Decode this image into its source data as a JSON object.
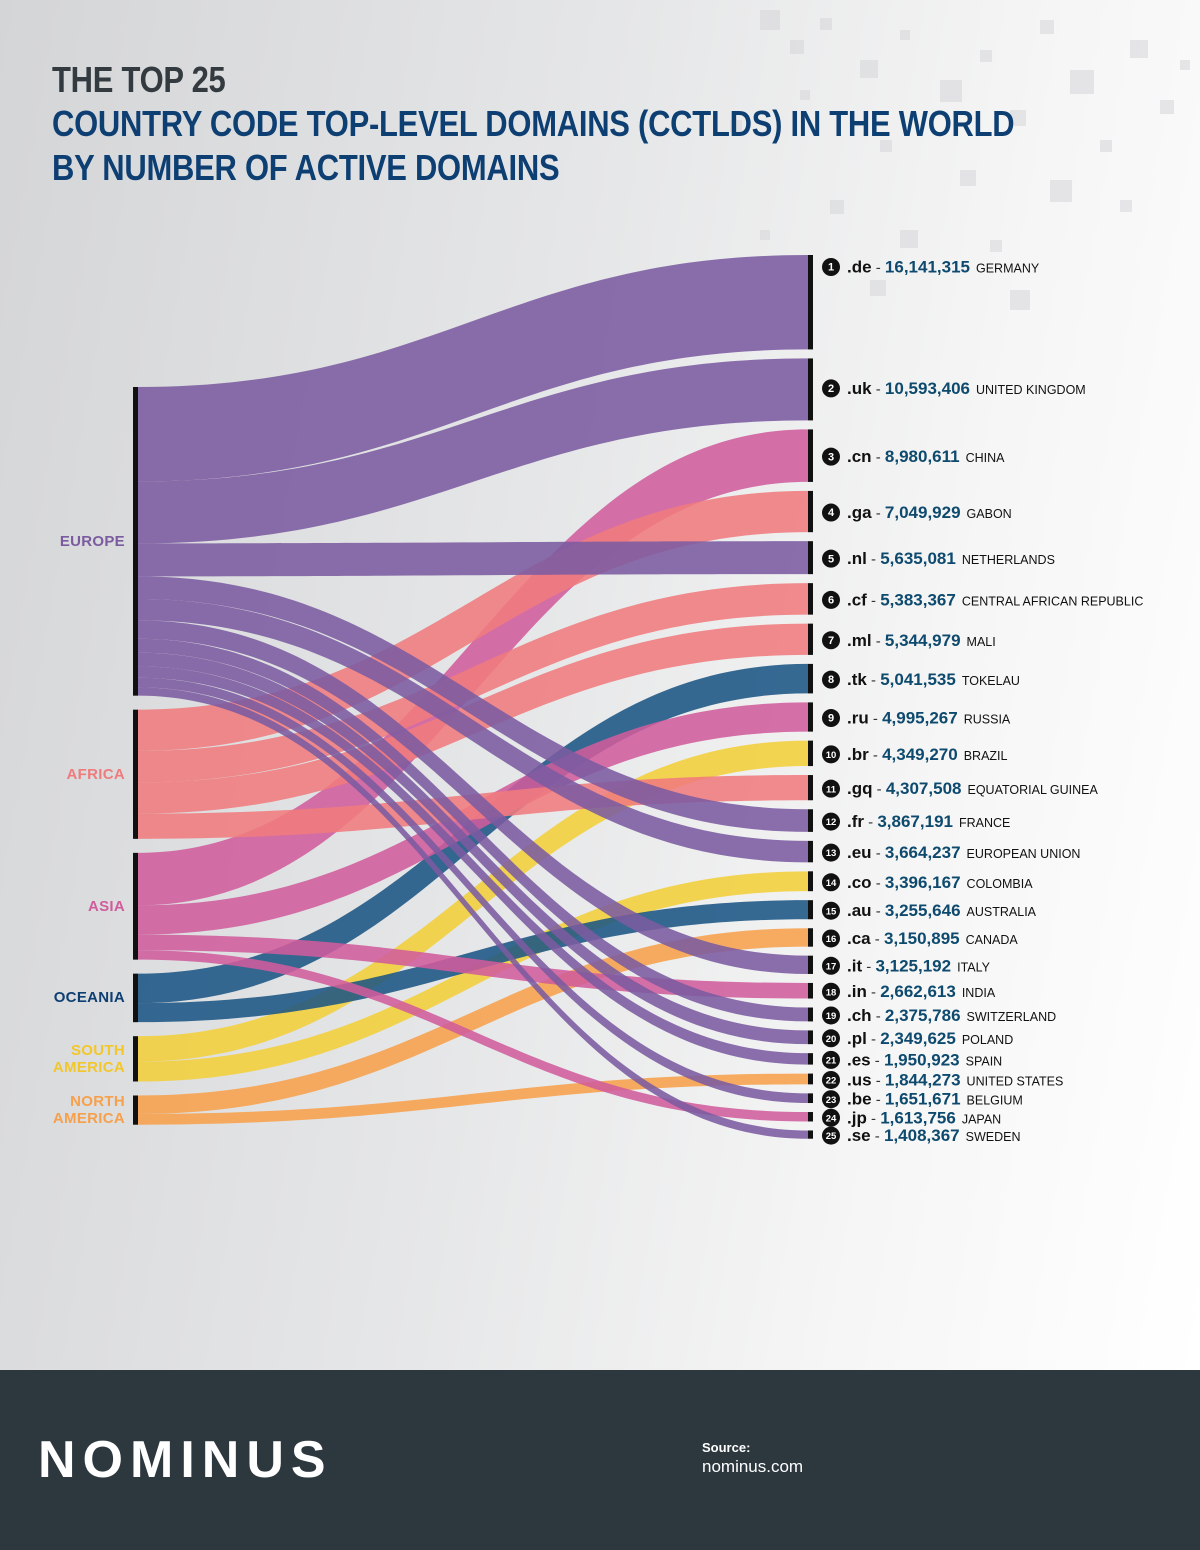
{
  "title": {
    "line1": "THE TOP 25",
    "line2": "COUNTRY CODE TOP-LEVEL DOMAINS (CCTLDS) IN THE WORLD",
    "line3": "BY NUMBER OF ACTIVE DOMAINS"
  },
  "colors": {
    "title_dark": "#333a40",
    "title_blue": "#0e3f73",
    "value_blue": "#0e4a6e",
    "footer_bg": "#2c373e"
  },
  "chart_data": {
    "type": "sankey",
    "regions": [
      {
        "id": "europe",
        "label_lines": [
          "EUROPE"
        ],
        "color": "#7b5ba0"
      },
      {
        "id": "africa",
        "label_lines": [
          "AFRICA"
        ],
        "color": "#f07b7d"
      },
      {
        "id": "asia",
        "label_lines": [
          "ASIA"
        ],
        "color": "#d05c9c"
      },
      {
        "id": "oceania",
        "label_lines": [
          "OCEANIA"
        ],
        "color": "#1b5584"
      },
      {
        "id": "south_america",
        "label_lines": [
          "SOUTH",
          "AMERICA"
        ],
        "color": "#f2cf3a"
      },
      {
        "id": "north_america",
        "label_lines": [
          "NORTH",
          "AMERICA"
        ],
        "color": "#f7a04b"
      }
    ],
    "domains": [
      {
        "rank": "1",
        "tld": ".de",
        "value": 16141315,
        "value_label": "16,141,315",
        "country": "GERMANY",
        "region": "europe"
      },
      {
        "rank": "2",
        "tld": ".uk",
        "value": 10593406,
        "value_label": "10,593,406",
        "country": "UNITED KINGDOM",
        "region": "europe"
      },
      {
        "rank": "3",
        "tld": ".cn",
        "value": 8980611,
        "value_label": "8,980,611",
        "country": "CHINA",
        "region": "asia"
      },
      {
        "rank": "4",
        "tld": ".ga",
        "value": 7049929,
        "value_label": "7,049,929",
        "country": "GABON",
        "region": "africa"
      },
      {
        "rank": "5",
        "tld": ".nl",
        "value": 5635081,
        "value_label": "5,635,081",
        "country": "NETHERLANDS",
        "region": "europe"
      },
      {
        "rank": "6",
        "tld": ".cf",
        "value": 5383367,
        "value_label": "5,383,367",
        "country": "CENTRAL AFRICAN REPUBLIC",
        "region": "africa"
      },
      {
        "rank": "7",
        "tld": ".ml",
        "value": 5344979,
        "value_label": "5,344,979",
        "country": "MALI",
        "region": "africa"
      },
      {
        "rank": "8",
        "tld": ".tk",
        "value": 5041535,
        "value_label": "5,041,535",
        "country": "TOKELAU",
        "region": "oceania"
      },
      {
        "rank": "9",
        "tld": ".ru",
        "value": 4995267,
        "value_label": "4,995,267",
        "country": "RUSSIA",
        "region": "asia"
      },
      {
        "rank": "10",
        "tld": ".br",
        "value": 4349270,
        "value_label": "4,349,270",
        "country": "BRAZIL",
        "region": "south_america"
      },
      {
        "rank": "11",
        "tld": ".gq",
        "value": 4307508,
        "value_label": "4,307,508",
        "country": "EQUATORIAL GUINEA",
        "region": "africa"
      },
      {
        "rank": "12",
        "tld": ".fr",
        "value": 3867191,
        "value_label": "3,867,191",
        "country": "FRANCE",
        "region": "europe"
      },
      {
        "rank": "13",
        "tld": ".eu",
        "value": 3664237,
        "value_label": "3,664,237",
        "country": "EUROPEAN UNION",
        "region": "europe"
      },
      {
        "rank": "14",
        "tld": ".co",
        "value": 3396167,
        "value_label": "3,396,167",
        "country": "COLOMBIA",
        "region": "south_america"
      },
      {
        "rank": "15",
        "tld": ".au",
        "value": 3255646,
        "value_label": "3,255,646",
        "country": "AUSTRALIA",
        "region": "oceania"
      },
      {
        "rank": "16",
        "tld": ".ca",
        "value": 3150895,
        "value_label": "3,150,895",
        "country": "CANADA",
        "region": "north_america"
      },
      {
        "rank": "17",
        "tld": ".it",
        "value": 3125192,
        "value_label": "3,125,192",
        "country": "ITALY",
        "region": "europe"
      },
      {
        "rank": "18",
        "tld": ".in",
        "value": 2662613,
        "value_label": "2,662,613",
        "country": "INDIA",
        "region": "asia"
      },
      {
        "rank": "19",
        "tld": ".ch",
        "value": 2375786,
        "value_label": "2,375,786",
        "country": "SWITZERLAND",
        "region": "europe"
      },
      {
        "rank": "20",
        "tld": ".pl",
        "value": 2349625,
        "value_label": "2,349,625",
        "country": "POLAND",
        "region": "europe"
      },
      {
        "rank": "21",
        "tld": ".es",
        "value": 1950923,
        "value_label": "1,950,923",
        "country": "SPAIN",
        "region": "europe"
      },
      {
        "rank": "22",
        "tld": ".us",
        "value": 1844273,
        "value_label": "1,844,273",
        "country": "UNITED STATES",
        "region": "north_america"
      },
      {
        "rank": "23",
        "tld": ".be",
        "value": 1651671,
        "value_label": "1,651,671",
        "country": "BELGIUM",
        "region": "europe"
      },
      {
        "rank": "24",
        "tld": ".jp",
        "value": 1613756,
        "value_label": "1,613,756",
        "country": "JAPAN",
        "region": "asia"
      },
      {
        "rank": "25",
        "tld": ".se",
        "value": 1408367,
        "value_label": "1,408,367",
        "country": "SWEDEN",
        "region": "europe"
      }
    ]
  },
  "footer": {
    "logo": "NOMINUS",
    "source_label": "Source:",
    "source_value": "nominus.com"
  }
}
